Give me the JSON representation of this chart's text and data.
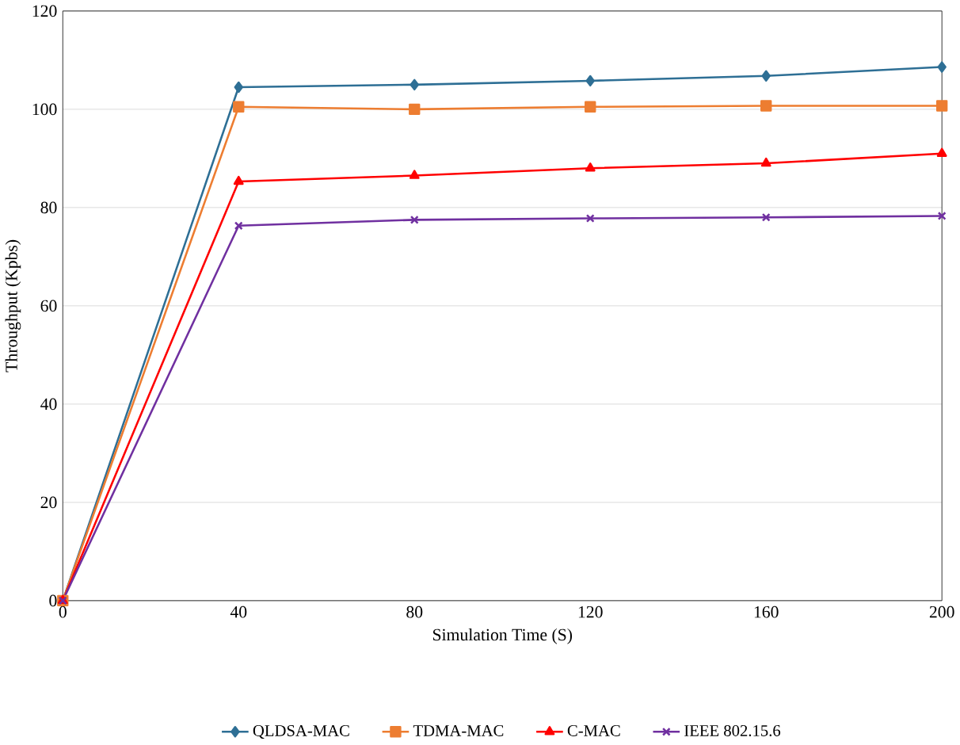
{
  "chart_data": {
    "type": "line",
    "xlabel": "Simulation Time (S)",
    "ylabel": "Throughput (Kpbs)",
    "x": [
      0,
      40,
      80,
      120,
      160,
      200
    ],
    "xlim": [
      0,
      200
    ],
    "xticks": [
      0,
      40,
      80,
      120,
      160,
      200
    ],
    "ylim": [
      0,
      120
    ],
    "yticks": [
      0,
      20,
      40,
      60,
      80,
      100,
      120
    ],
    "grid": "y",
    "legend": "bottom",
    "series": [
      {
        "name": "QLDSA-MAC",
        "color": "#2e6f95",
        "marker": "diamond",
        "values": [
          0,
          104.5,
          105,
          105.8,
          106.8,
          108.6
        ]
      },
      {
        "name": "TDMA-MAC",
        "color": "#ed7d31",
        "marker": "square",
        "values": [
          0,
          100.5,
          100,
          100.5,
          100.7,
          100.7
        ]
      },
      {
        "name": "C-MAC",
        "color": "#ff0000",
        "marker": "triangle",
        "values": [
          0,
          85.3,
          86.5,
          88,
          89,
          91
        ]
      },
      {
        "name": "IEEE 802.15.6",
        "color": "#7030a0",
        "marker": "cross",
        "values": [
          0,
          76.3,
          77.5,
          77.8,
          78,
          78.3
        ]
      }
    ]
  }
}
